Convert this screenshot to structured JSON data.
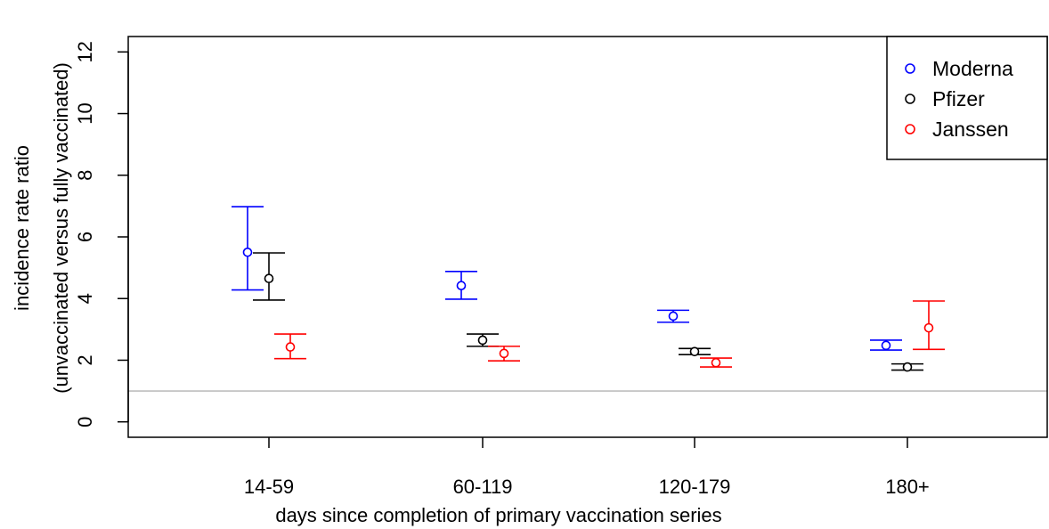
{
  "chart_data": {
    "type": "scatter",
    "title": "",
    "xlabel": "days since completion of primary vaccination series",
    "ylabel_lines": [
      "incidence rate ratio",
      "(unvaccinated versus fully vaccinated)"
    ],
    "categories": [
      "14-59",
      "60-119",
      "120-179",
      "180+"
    ],
    "ylim": [
      -0.5,
      12.5
    ],
    "yticks": [
      0,
      2,
      4,
      6,
      8,
      10,
      12
    ],
    "ytick_labels": [
      "0",
      "2",
      "4",
      "6",
      "8",
      "10",
      "12"
    ],
    "reference_line": {
      "y": 1,
      "color": "#bebebe"
    },
    "grid": false,
    "legend_position": "top-right",
    "series": [
      {
        "name": "Moderna",
        "color": "#0000ff",
        "values": [
          5.5,
          4.42,
          3.43,
          2.48
        ],
        "lower": [
          4.28,
          3.98,
          3.23,
          2.33
        ],
        "upper": [
          6.98,
          4.88,
          3.62,
          2.65
        ]
      },
      {
        "name": "Pfizer",
        "color": "#000000",
        "values": [
          4.65,
          2.65,
          2.28,
          1.78
        ],
        "lower": [
          3.95,
          2.45,
          2.18,
          1.68
        ],
        "upper": [
          5.48,
          2.85,
          2.38,
          1.88
        ]
      },
      {
        "name": "Janssen",
        "color": "#ff0000",
        "values": [
          2.43,
          2.22,
          1.92,
          3.05
        ],
        "lower": [
          2.05,
          1.98,
          1.78,
          2.35
        ],
        "upper": [
          2.85,
          2.45,
          2.07,
          3.92
        ]
      }
    ]
  }
}
